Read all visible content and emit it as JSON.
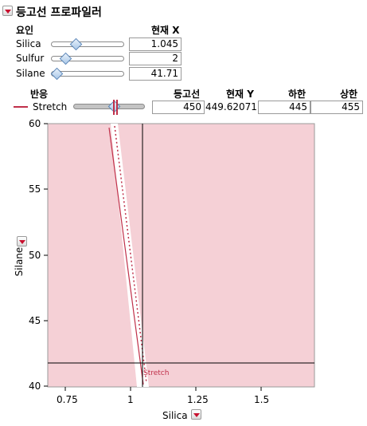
{
  "header": {
    "title": "등고선 프로파일러",
    "menu_icon": "red-triangle-menu-icon"
  },
  "factors": {
    "col_factor": "요인",
    "col_current_x": "현재 X",
    "items": [
      {
        "name": "Silica",
        "value": "1.045"
      },
      {
        "name": "Sulfur",
        "value": "2"
      },
      {
        "name": "Silane",
        "value": "41.71"
      }
    ]
  },
  "responses": {
    "col_response": "반응",
    "col_contour": "등고선",
    "col_current_y": "현재 Y",
    "col_lower": "하한",
    "col_upper": "상한",
    "items": [
      {
        "name": "Stretch",
        "contour": "450",
        "current_y": "449.62071",
        "lower": "445",
        "upper": "455",
        "color": "#c0304a"
      }
    ]
  },
  "plot": {
    "x_label": "Silica",
    "y_label": "Silane",
    "x_ticks": [
      "0.75",
      "1",
      "1.25",
      "1.5"
    ],
    "y_ticks": [
      "40",
      "45",
      "50",
      "55",
      "60"
    ],
    "contour_label": "Stretch",
    "shade_color": "#f5d0d6",
    "contour_color": "#c0304a"
  }
}
